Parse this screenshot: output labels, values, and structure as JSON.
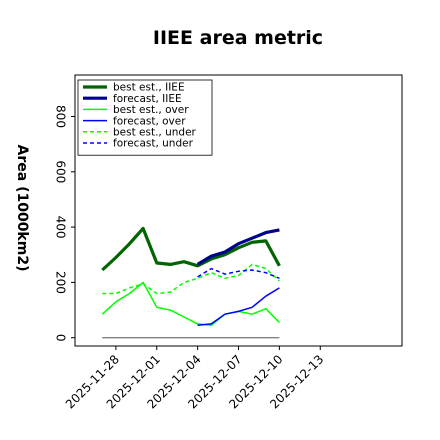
{
  "chart_data": {
    "type": "line",
    "title": "IIEE area metric",
    "xlabel": "",
    "ylabel": "Area (1000km2)",
    "ylim": [
      -30,
      950
    ],
    "xlim": [
      -3,
      21
    ],
    "yticks": [
      0,
      200,
      400,
      600,
      800
    ],
    "xticks": [
      {
        "x": 0,
        "label": "2025-11-28",
        "color": "#000000"
      },
      {
        "x": 3,
        "label": "2025-12-01",
        "color": "#000000"
      },
      {
        "x": 6,
        "label": "2025-12-04",
        "color": "#228b22"
      },
      {
        "x": 9,
        "label": "2025-12-07",
        "color": "#000000"
      },
      {
        "x": 12,
        "label": "2025-12-10",
        "color": "#000000"
      },
      {
        "x": 15,
        "label": "2025-12-13",
        "color": "#000000"
      }
    ],
    "grid": false,
    "legend_position": "top-left",
    "zero_line": {
      "x": [
        -1,
        12
      ],
      "y": 0,
      "color": "#808080"
    },
    "series": [
      {
        "name": "best est., IIEE",
        "color": "#006400",
        "width": 3.2,
        "dash": "",
        "x": [
          -1,
          0,
          1,
          2,
          3,
          4,
          5,
          6,
          7,
          8,
          9,
          10,
          11,
          12
        ],
        "y": [
          245,
          290,
          340,
          395,
          270,
          265,
          275,
          260,
          285,
          300,
          325,
          345,
          350,
          260
        ]
      },
      {
        "name": "forecast, IIEE",
        "color": "#00008b",
        "width": 3.2,
        "dash": "",
        "x": [
          6,
          7,
          8,
          9,
          10,
          11,
          12
        ],
        "y": [
          265,
          295,
          310,
          340,
          360,
          380,
          390
        ]
      },
      {
        "name": "best est., over",
        "color": "#00ff00",
        "width": 1.5,
        "dash": "",
        "x": [
          -1,
          0,
          1,
          2,
          3,
          4,
          5,
          6,
          7,
          8,
          9,
          10,
          11,
          12
        ],
        "y": [
          85,
          130,
          160,
          200,
          110,
          100,
          75,
          50,
          45,
          85,
          95,
          85,
          105,
          55
        ]
      },
      {
        "name": "forecast, over",
        "color": "#0000ff",
        "width": 1.5,
        "dash": "",
        "x": [
          6,
          7,
          8,
          9,
          10,
          11,
          12
        ],
        "y": [
          45,
          50,
          85,
          95,
          110,
          150,
          180
        ]
      },
      {
        "name": "best est., under",
        "color": "#00ff00",
        "width": 1.5,
        "dash": "4,3",
        "x": [
          -1,
          0,
          1,
          2,
          3,
          4,
          5,
          6,
          7,
          8,
          9,
          10,
          11,
          12
        ],
        "y": [
          160,
          160,
          180,
          195,
          160,
          165,
          200,
          215,
          235,
          215,
          225,
          265,
          250,
          205
        ]
      },
      {
        "name": "forecast, under",
        "color": "#0000ff",
        "width": 1.5,
        "dash": "4,3",
        "x": [
          6,
          7,
          8,
          9,
          10,
          11,
          12
        ],
        "y": [
          220,
          250,
          230,
          240,
          245,
          235,
          215
        ]
      }
    ]
  }
}
